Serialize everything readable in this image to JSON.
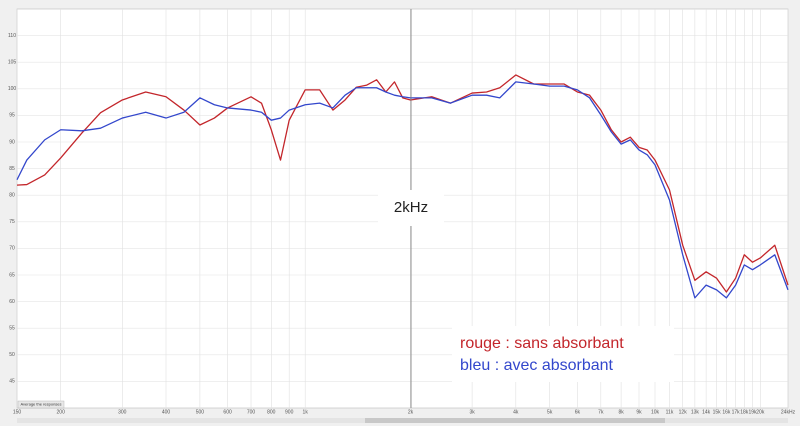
{
  "chart_data": {
    "type": "line",
    "xscale": "log",
    "grid": true,
    "x": [
      150,
      160,
      180,
      200,
      230,
      260,
      300,
      350,
      400,
      450,
      500,
      550,
      600,
      700,
      750,
      800,
      850,
      900,
      1000,
      1100,
      1200,
      1300,
      1400,
      1500,
      1600,
      1700,
      1800,
      1900,
      2000,
      2300,
      2600,
      3000,
      3300,
      3600,
      4000,
      4500,
      5000,
      5500,
      6000,
      6500,
      7000,
      7500,
      8000,
      8500,
      9000,
      9500,
      10000,
      11000,
      12000,
      13000,
      14000,
      15000,
      16000,
      17000,
      18000,
      19000,
      20000,
      22000,
      24000
    ],
    "series": [
      {
        "name": "rouge : sans absorbant",
        "color": "#c3262b",
        "values": [
          81.9,
          82,
          83.8,
          87,
          91.7,
          95.5,
          97.9,
          99.4,
          98.5,
          96,
          93.2,
          94.5,
          96.4,
          98.5,
          97.3,
          92.3,
          86.6,
          94.1,
          99.8,
          99.8,
          96,
          97.9,
          100.3,
          100.7,
          101.7,
          99.4,
          101.3,
          98.3,
          97.9,
          98.5,
          97.3,
          99.2,
          99.4,
          100.2,
          102.6,
          100.9,
          100.9,
          100.9,
          99.4,
          98.8,
          96,
          92.3,
          90,
          90.9,
          89,
          88.5,
          86.6,
          81,
          70.6,
          64,
          65.6,
          64.4,
          61.8,
          64.4,
          68.8,
          67.4,
          68.2,
          70.6,
          63.1
        ]
      },
      {
        "name": "bleu : avec absorbant",
        "color": "#3347cc",
        "values": [
          82.9,
          86.6,
          90.4,
          92.3,
          92.1,
          92.6,
          94.5,
          95.6,
          94.5,
          95.6,
          98.3,
          97,
          96.4,
          96,
          95.6,
          94.1,
          94.5,
          96,
          97,
          97.3,
          96.4,
          98.8,
          100.2,
          100.2,
          100.2,
          99.4,
          98.8,
          98.5,
          98.3,
          98.3,
          97.3,
          98.8,
          98.8,
          98.3,
          101.3,
          100.9,
          100.5,
          100.5,
          99.8,
          98.3,
          95.1,
          91.9,
          89.6,
          90.4,
          88.5,
          87.6,
          85.7,
          79.1,
          68.8,
          60.7,
          63.1,
          62.2,
          60.7,
          63.1,
          66.9,
          66,
          66.9,
          68.8,
          62.2
        ]
      }
    ],
    "xlim": [
      150,
      24000
    ],
    "xticks": [
      150,
      200,
      300,
      400,
      500,
      600,
      700,
      800,
      900,
      {
        "value": 1000,
        "label": "1k"
      },
      {
        "value": 2000,
        "label": "2k"
      },
      {
        "value": 3000,
        "label": "3k"
      },
      {
        "value": 4000,
        "label": "4k"
      },
      {
        "value": 5000,
        "label": "5k"
      },
      {
        "value": 6000,
        "label": "6k"
      },
      {
        "value": 7000,
        "label": "7k"
      },
      {
        "value": 8000,
        "label": "8k"
      },
      {
        "value": 9000,
        "label": "9k"
      },
      {
        "value": 10000,
        "label": "10k"
      },
      {
        "value": 11000,
        "label": "11k"
      },
      {
        "value": 12000,
        "label": "12k"
      },
      {
        "value": 13000,
        "label": "13k"
      },
      {
        "value": 14000,
        "label": "14k"
      },
      {
        "value": 15000,
        "label": "15k"
      },
      {
        "value": 16000,
        "label": "16k"
      },
      {
        "value": 17000,
        "label": "17k"
      },
      {
        "value": 18000,
        "label": "18k"
      },
      {
        "value": 19000,
        "label": "19k"
      },
      {
        "value": 20000,
        "label": "20k"
      },
      {
        "value": 24000,
        "label": "24kHz"
      }
    ],
    "ylim": [
      40,
      115
    ],
    "yticks": [
      45,
      50,
      55,
      60,
      65,
      70,
      75,
      80,
      85,
      90,
      95,
      100,
      105,
      110
    ],
    "annotation": "2kHz",
    "button": "Average the responses"
  }
}
